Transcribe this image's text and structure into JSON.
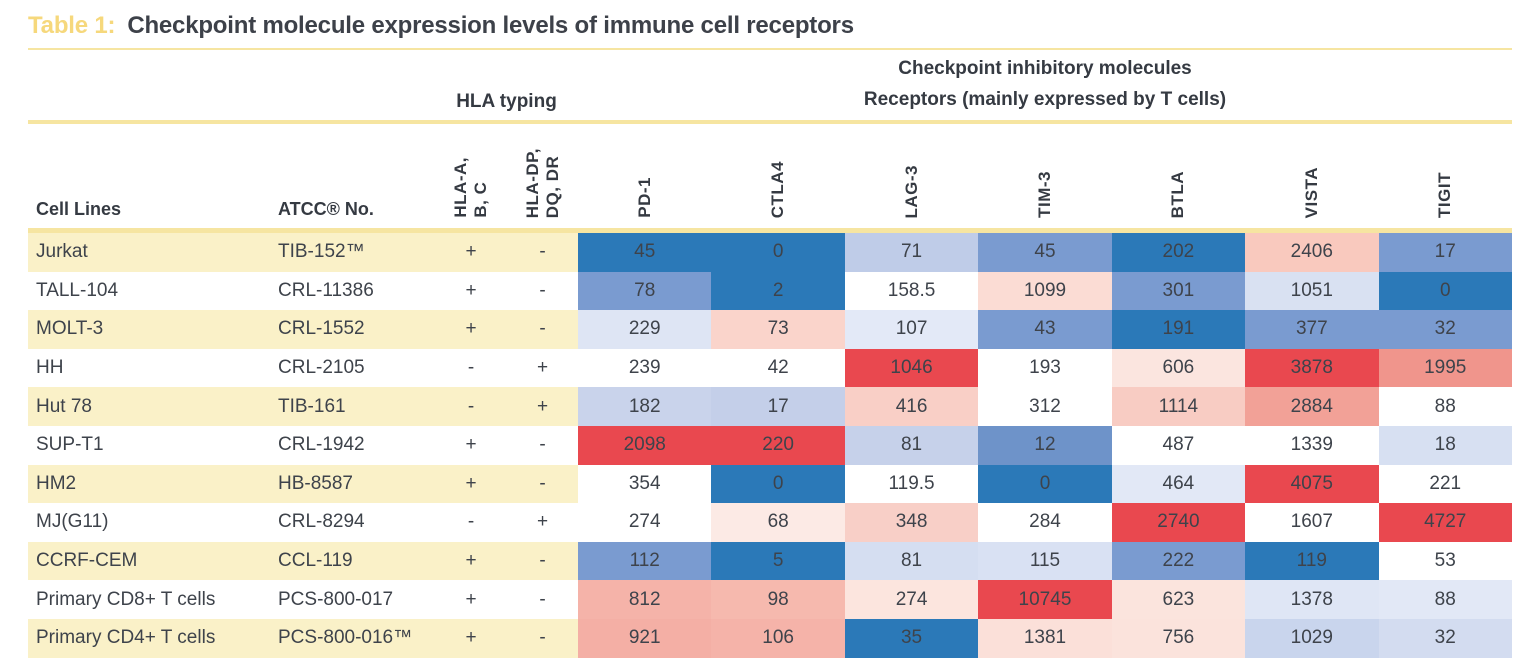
{
  "title": {
    "label": "Table 1:",
    "text": "Checkpoint molecule expression levels of immune cell receptors"
  },
  "group_headers": {
    "hla": "HLA typing",
    "checkpoint": "Checkpoint inhibitory molecules\nReceptors (mainly expressed by T cells)"
  },
  "column_headers": {
    "cell_lines": "Cell Lines",
    "atcc": "ATCC® No.",
    "hla_abc": "HLA-A,\nB, C",
    "hla_dp": "HLA-DP,\nDQ, DR",
    "receptors": [
      "PD-1",
      "CTLA4",
      "LAG-3",
      "TIM-3",
      "BTLA",
      "VISTA",
      "TIGIT"
    ]
  },
  "colors": {
    "title_gold": "#f6d87c",
    "rule_yellow": "#f6e5a1",
    "row_stripe": "#faf1c8",
    "heat_blue_strong": "#2b79b8",
    "heat_red_strong": "#e9484f",
    "text": "#3e434b"
  },
  "rows": [
    {
      "cell_line": "Jurkat",
      "atcc_no": "TIB-152™",
      "hla_abc": "+",
      "hla_dp": "-",
      "cells": [
        {
          "v": "45",
          "bg": "#2b79b8"
        },
        {
          "v": "0",
          "bg": "#2b79b8"
        },
        {
          "v": "71",
          "bg": "#bfcce8"
        },
        {
          "v": "45",
          "bg": "#7a9bd0"
        },
        {
          "v": "202",
          "bg": "#2b79b8"
        },
        {
          "v": "2406",
          "bg": "#f9c9be"
        },
        {
          "v": "17",
          "bg": "#7a9bd0"
        }
      ]
    },
    {
      "cell_line": "TALL-104",
      "atcc_no": "CRL-11386",
      "hla_abc": "+",
      "hla_dp": "-",
      "cells": [
        {
          "v": "78",
          "bg": "#7a9bd0"
        },
        {
          "v": "2",
          "bg": "#2b79b8"
        },
        {
          "v": "158.5",
          "bg": "#ffffff"
        },
        {
          "v": "1099",
          "bg": "#fbdcd4"
        },
        {
          "v": "301",
          "bg": "#7a9bd0"
        },
        {
          "v": "1051",
          "bg": "#d9e1f2"
        },
        {
          "v": "0",
          "bg": "#2b79b8"
        }
      ]
    },
    {
      "cell_line": "MOLT-3",
      "atcc_no": "CRL-1552",
      "hla_abc": "+",
      "hla_dp": "-",
      "cells": [
        {
          "v": "229",
          "bg": "#dee5f4"
        },
        {
          "v": "73",
          "bg": "#fad4cb"
        },
        {
          "v": "107",
          "bg": "#e3e9f7"
        },
        {
          "v": "43",
          "bg": "#7a9bd0"
        },
        {
          "v": "191",
          "bg": "#2b79b8"
        },
        {
          "v": "377",
          "bg": "#7a9bd0"
        },
        {
          "v": "32",
          "bg": "#7a9bd0"
        }
      ]
    },
    {
      "cell_line": "HH",
      "atcc_no": "CRL-2105",
      "hla_abc": "-",
      "hla_dp": "+",
      "cells": [
        {
          "v": "239",
          "bg": "#ffffff"
        },
        {
          "v": "42",
          "bg": "#ffffff"
        },
        {
          "v": "1046",
          "bg": "#e9484f"
        },
        {
          "v": "193",
          "bg": "#ffffff"
        },
        {
          "v": "606",
          "bg": "#fbe5df"
        },
        {
          "v": "3878",
          "bg": "#e9484f"
        },
        {
          "v": "1995",
          "bg": "#f0958c"
        }
      ]
    },
    {
      "cell_line": "Hut 78",
      "atcc_no": "TIB-161",
      "hla_abc": "-",
      "hla_dp": "+",
      "cells": [
        {
          "v": "182",
          "bg": "#c9d3eb"
        },
        {
          "v": "17",
          "bg": "#c4cfe9"
        },
        {
          "v": "416",
          "bg": "#f9cfc6"
        },
        {
          "v": "312",
          "bg": "#ffffff"
        },
        {
          "v": "1114",
          "bg": "#f8ccc3"
        },
        {
          "v": "2884",
          "bg": "#f2a197"
        },
        {
          "v": "88",
          "bg": "#ffffff"
        }
      ]
    },
    {
      "cell_line": "SUP-T1",
      "atcc_no": "CRL-1942",
      "hla_abc": "+",
      "hla_dp": "-",
      "cells": [
        {
          "v": "2098",
          "bg": "#e9484f"
        },
        {
          "v": "220",
          "bg": "#e9484f"
        },
        {
          "v": "81",
          "bg": "#c6d1ea"
        },
        {
          "v": "12",
          "bg": "#6e93c9"
        },
        {
          "v": "487",
          "bg": "#ffffff"
        },
        {
          "v": "1339",
          "bg": "#ffffff"
        },
        {
          "v": "18",
          "bg": "#d7e0f2"
        }
      ]
    },
    {
      "cell_line": "HM2",
      "atcc_no": "HB-8587",
      "hla_abc": "+",
      "hla_dp": "-",
      "cells": [
        {
          "v": "354",
          "bg": "#ffffff"
        },
        {
          "v": "0",
          "bg": "#2b79b8"
        },
        {
          "v": "119.5",
          "bg": "#ffffff"
        },
        {
          "v": "0",
          "bg": "#2b79b8"
        },
        {
          "v": "464",
          "bg": "#e2e8f6"
        },
        {
          "v": "4075",
          "bg": "#e9484f"
        },
        {
          "v": "221",
          "bg": "#ffffff"
        }
      ]
    },
    {
      "cell_line": "MJ(G11)",
      "atcc_no": "CRL-8294",
      "hla_abc": "-",
      "hla_dp": "+",
      "cells": [
        {
          "v": "274",
          "bg": "#ffffff"
        },
        {
          "v": "68",
          "bg": "#fceae5"
        },
        {
          "v": "348",
          "bg": "#f8cfc7"
        },
        {
          "v": "284",
          "bg": "#ffffff"
        },
        {
          "v": "2740",
          "bg": "#e9484f"
        },
        {
          "v": "1607",
          "bg": "#ffffff"
        },
        {
          "v": "4727",
          "bg": "#e9484f"
        }
      ]
    },
    {
      "cell_line": "CCRF-CEM",
      "atcc_no": "CCL-119",
      "hla_abc": "+",
      "hla_dp": "-",
      "cells": [
        {
          "v": "112",
          "bg": "#7a9bd0"
        },
        {
          "v": "5",
          "bg": "#2b79b8"
        },
        {
          "v": "81",
          "bg": "#d5def1"
        },
        {
          "v": "115",
          "bg": "#d9e1f3"
        },
        {
          "v": "222",
          "bg": "#7a9bd0"
        },
        {
          "v": "119",
          "bg": "#2b79b8"
        },
        {
          "v": "53",
          "bg": "#ffffff"
        }
      ]
    },
    {
      "cell_line": "Primary CD8+ T cells",
      "atcc_no": "PCS-800-017",
      "hla_abc": "+",
      "hla_dp": "-",
      "cells": [
        {
          "v": "812",
          "bg": "#f5b3a9"
        },
        {
          "v": "98",
          "bg": "#f6b9ae"
        },
        {
          "v": "274",
          "bg": "#fce5de"
        },
        {
          "v": "10745",
          "bg": "#e9484f"
        },
        {
          "v": "623",
          "bg": "#fbe4dd"
        },
        {
          "v": "1378",
          "bg": "#dfe6f5"
        },
        {
          "v": "88",
          "bg": "#e2e8f6"
        }
      ]
    },
    {
      "cell_line": "Primary CD4+ T cells",
      "atcc_no": "PCS-800-016™",
      "hla_abc": "+",
      "hla_dp": "-",
      "cells": [
        {
          "v": "921",
          "bg": "#f4afa5"
        },
        {
          "v": "106",
          "bg": "#f5b3a9"
        },
        {
          "v": "35",
          "bg": "#2b79b8"
        },
        {
          "v": "1381",
          "bg": "#fbe0d9"
        },
        {
          "v": "756",
          "bg": "#fbe3dc"
        },
        {
          "v": "1029",
          "bg": "#c9d5ed"
        },
        {
          "v": "32",
          "bg": "#d3dcf0"
        }
      ]
    }
  ],
  "chart_data": {
    "type": "heatmap",
    "title": "Table 1: Checkpoint molecule expression levels of immune cell receptors",
    "columns": [
      "PD-1",
      "CTLA4",
      "LAG-3",
      "TIM-3",
      "BTLA",
      "VISTA",
      "TIGIT"
    ],
    "row_labels": [
      "Jurkat",
      "TALL-104",
      "MOLT-3",
      "HH",
      "Hut 78",
      "SUP-T1",
      "HM2",
      "MJ(G11)",
      "CCRF-CEM",
      "Primary CD8+ T cells",
      "Primary CD4+ T cells"
    ],
    "values": [
      [
        45,
        0,
        71,
        45,
        202,
        2406,
        17
      ],
      [
        78,
        2,
        158.5,
        1099,
        301,
        1051,
        0
      ],
      [
        229,
        73,
        107,
        43,
        191,
        377,
        32
      ],
      [
        239,
        42,
        1046,
        193,
        606,
        3878,
        1995
      ],
      [
        182,
        17,
        416,
        312,
        1114,
        2884,
        88
      ],
      [
        2098,
        220,
        81,
        12,
        487,
        1339,
        18
      ],
      [
        354,
        0,
        119.5,
        0,
        464,
        4075,
        221
      ],
      [
        274,
        68,
        348,
        284,
        2740,
        1607,
        4727
      ],
      [
        112,
        5,
        81,
        115,
        222,
        119,
        53
      ],
      [
        812,
        98,
        274,
        10745,
        623,
        1378,
        88
      ],
      [
        921,
        106,
        35,
        1381,
        756,
        1029,
        32
      ]
    ],
    "color_scale": "blue (low) to white to red (high), scaled per column",
    "legend_position": "none",
    "grid": false
  }
}
